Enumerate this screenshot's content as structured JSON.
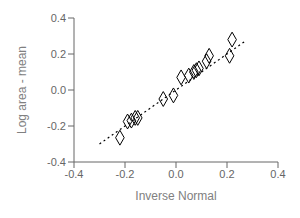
{
  "chart_data": {
    "type": "scatter",
    "xlabel": "Inverse Normal",
    "ylabel": "Log area - mean",
    "xlim": [
      -0.4,
      0.4
    ],
    "ylim": [
      -0.4,
      0.4
    ],
    "xticks": [
      -0.4,
      -0.2,
      {
        "value": 0,
        "label": "0.0"
      },
      0.2,
      0.4
    ],
    "yticks": [
      -0.4,
      -0.2,
      {
        "value": 0,
        "label": "0.0"
      },
      0.2,
      0.4
    ],
    "grid": false,
    "series": [
      {
        "type": "scatter",
        "marker": "diamond",
        "color": "black",
        "x": [
          -0.22,
          -0.19,
          -0.175,
          -0.16,
          -0.15,
          -0.05,
          -0.01,
          0.02,
          0.05,
          0.07,
          0.08,
          0.09,
          0.12,
          0.13,
          0.21,
          0.22
        ],
        "values": [
          -0.265,
          -0.175,
          -0.17,
          -0.155,
          -0.155,
          -0.05,
          -0.03,
          0.07,
          0.08,
          0.1,
          0.11,
          0.12,
          0.16,
          0.19,
          0.19,
          0.28
        ]
      },
      {
        "type": "line",
        "line_style": "dotted",
        "color": "black",
        "x": [
          -0.3,
          0.27
        ],
        "values": [
          -0.3,
          0.27
        ]
      }
    ]
  }
}
